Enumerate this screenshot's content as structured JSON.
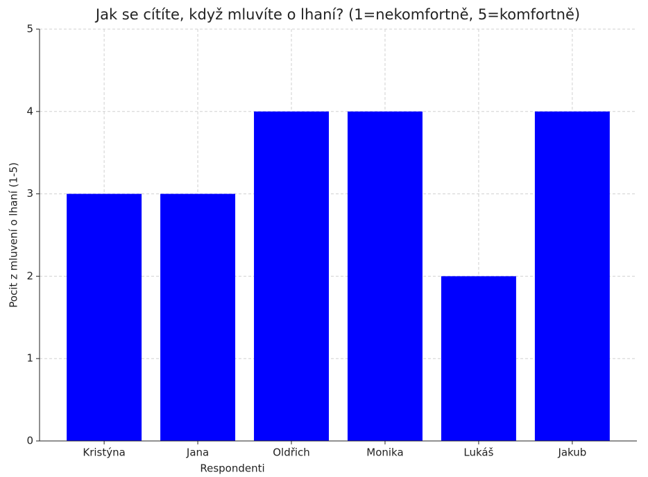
{
  "chart_data": {
    "type": "bar",
    "title": "Jak se cítíte, když mluvíte o lhaní? (1=nekomfortně, 5=komfortně)",
    "x_label": "Respondenti",
    "y_label": "Pocit z mluvení o lhaní (1-5)",
    "categories": [
      "Kristýna",
      "Jana",
      "Oldřich",
      "Monika",
      "Lukáš",
      "Jakub"
    ],
    "values": [
      3,
      3,
      4,
      4,
      2,
      4
    ],
    "color": "#0000ff",
    "ylim": [
      0,
      5
    ],
    "yticks": [
      0,
      1,
      2,
      3,
      4,
      5
    ],
    "grid": true
  }
}
